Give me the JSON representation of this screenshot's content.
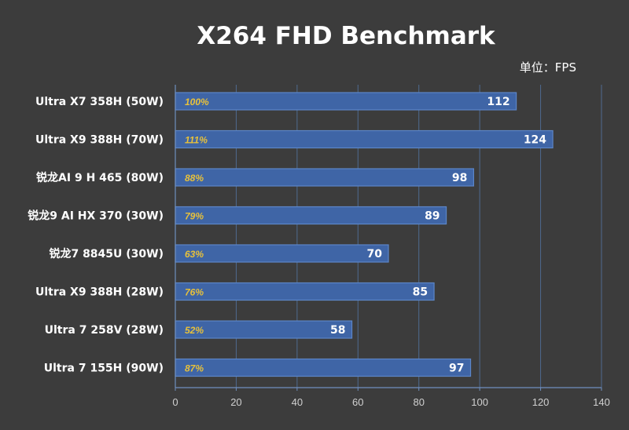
{
  "chart_data": {
    "type": "bar",
    "orientation": "horizontal",
    "title": "X264 FHD Benchmark",
    "unit_label": "单位：FPS",
    "categories": [
      "Ultra X7 358H (50W)",
      "Ultra X9 388H (70W)",
      "锐龙AI 9 H 465 (80W)",
      "锐龙9 AI HX 370 (30W)",
      "锐龙7 8845U (30W)",
      "Ultra X9 388H (28W)",
      "Ultra 7 258V (28W)",
      "Ultra 7 155H (90W)"
    ],
    "values": [
      112,
      124,
      98,
      89,
      70,
      85,
      58,
      97
    ],
    "percent_labels": [
      "100%",
      "111%",
      "88%",
      "79%",
      "63%",
      "76%",
      "52%",
      "87%"
    ],
    "xlim": [
      0,
      140
    ],
    "xticks": [
      0,
      20,
      40,
      60,
      80,
      100,
      120,
      140
    ],
    "xlabel": "",
    "ylabel": "",
    "grid": true,
    "legend": null,
    "colors": {
      "background": "#3c3c3c",
      "bar_fill": "#3f65a6",
      "bar_stroke": "#5c86c8",
      "grid": "#4f6a8f",
      "axis": "#6f8fbf",
      "percent_text": "#e8c13a",
      "text": "#ffffff",
      "tick_text": "#d0d0d0"
    }
  }
}
